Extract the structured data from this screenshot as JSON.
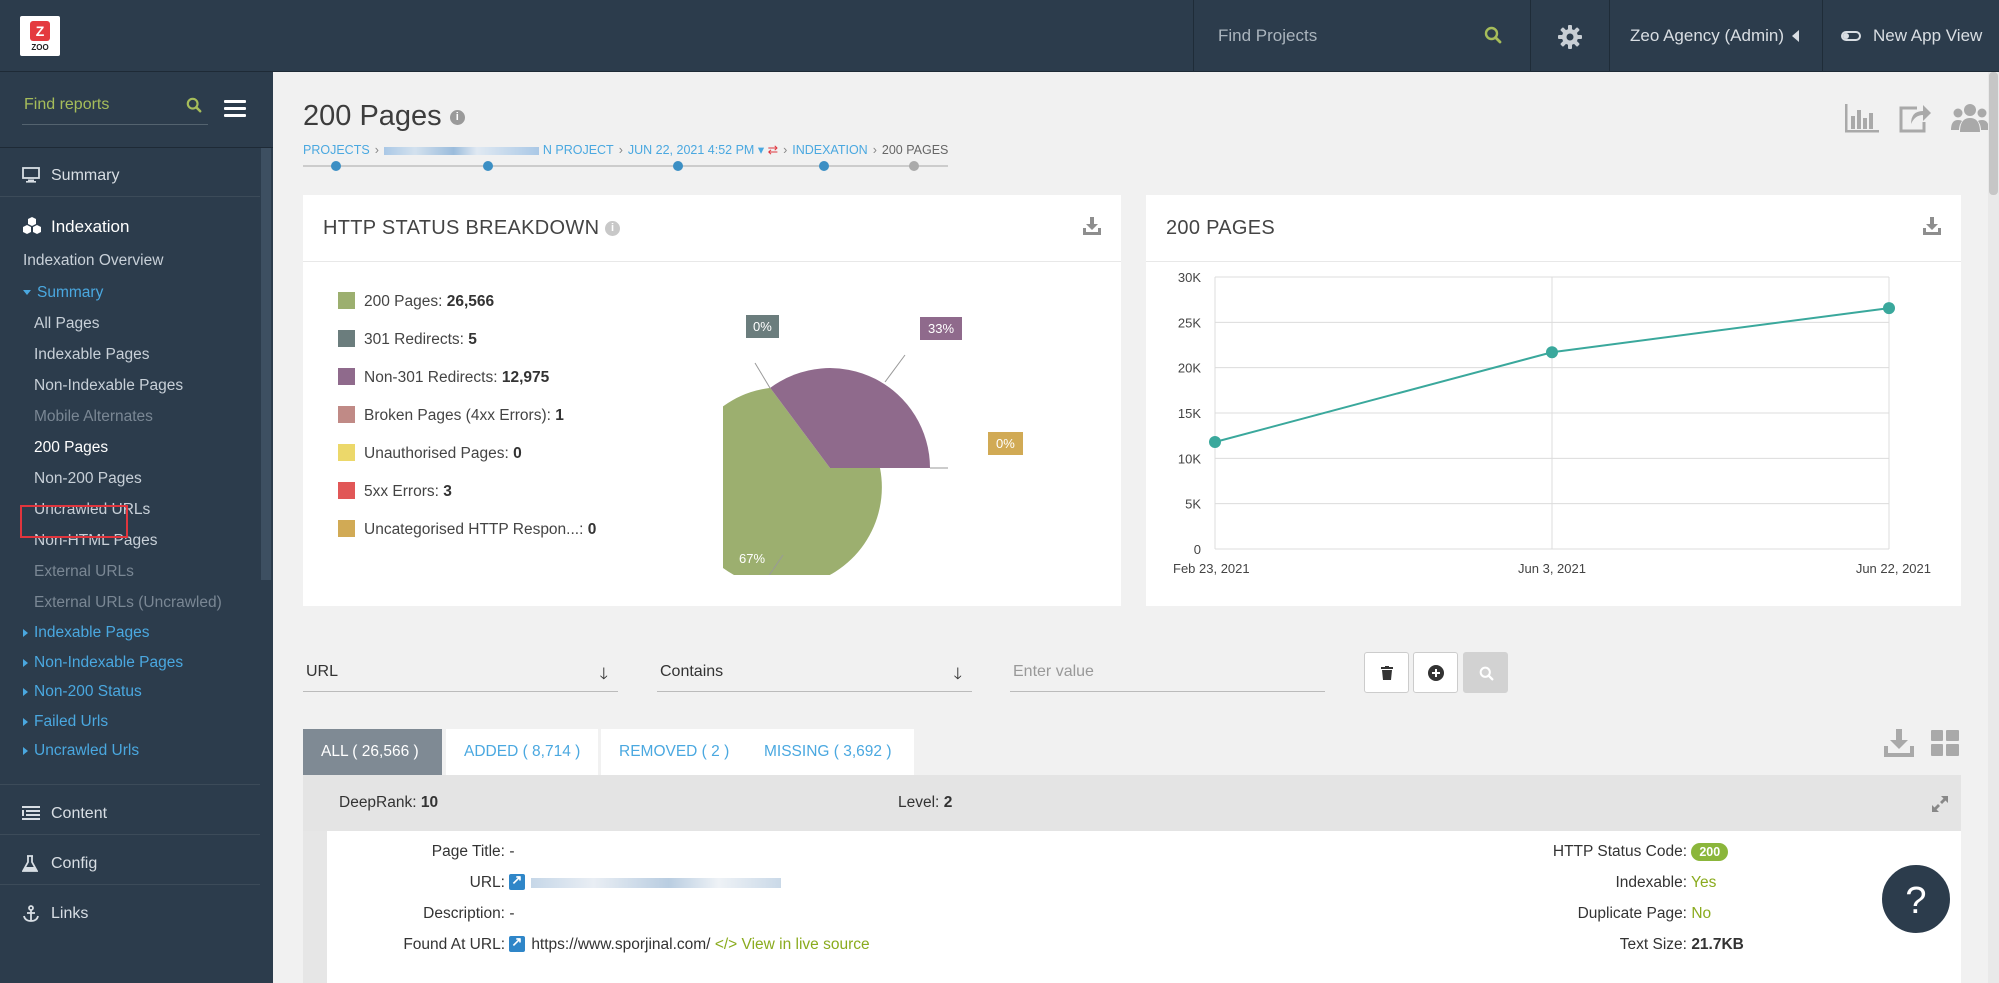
{
  "topbar": {
    "logo_text": "ZOO",
    "search_placeholder": "Find Projects",
    "user_menu": "Zeo Agency (Admin)",
    "new_app_view": "New App View"
  },
  "sidebar": {
    "search_placeholder": "Find reports",
    "summary": "Summary",
    "indexation": "Indexation",
    "sub": {
      "indexation_overview": "Indexation Overview",
      "summary": "Summary",
      "all_pages": "All Pages",
      "indexable_pages": "Indexable Pages",
      "non_indexable_pages": "Non-Indexable Pages",
      "mobile_alternates": "Mobile Alternates",
      "pages_200": "200 Pages",
      "non_200_pages": "Non-200 Pages",
      "uncrawled_urls": "Uncrawled URLs",
      "non_html_pages": "Non-HTML Pages",
      "external_urls": "External URLs",
      "external_urls_uncrawled": "External URLs (Uncrawled)",
      "g_indexable_pages": "Indexable Pages",
      "g_non_indexable_pages": "Non-Indexable Pages",
      "g_non_200_status": "Non-200 Status",
      "g_failed_urls": "Failed Urls",
      "g_uncrawled_urls": "Uncrawled Urls"
    },
    "content": "Content",
    "config": "Config",
    "links": "Links"
  },
  "page": {
    "title": "200 Pages",
    "crumbs": {
      "projects": "PROJECTS",
      "project": "N PROJECT",
      "date": "JUN 22, 2021 4:52 PM",
      "indexation": "INDEXATION",
      "current": "200 PAGES"
    }
  },
  "status_panel": {
    "title": "HTTP STATUS BREAKDOWN",
    "legend": [
      {
        "label": "200 Pages: ",
        "value": "26,566",
        "color": "#9caf6f"
      },
      {
        "label": "301 Redirects: ",
        "value": "5",
        "color": "#6b7d7d"
      },
      {
        "label": "Non-301 Redirects: ",
        "value": "12,975",
        "color": "#8f6a8c"
      },
      {
        "label": "Broken Pages (4xx Errors): ",
        "value": "1",
        "color": "#c08a86"
      },
      {
        "label": "Unauthorised Pages: ",
        "value": "0",
        "color": "#ecd86a"
      },
      {
        "label": "5xx Errors: ",
        "value": "3",
        "color": "#e15757"
      },
      {
        "label": "Uncategorised HTTP Respon...: ",
        "value": "0",
        "color": "#d1aa55"
      }
    ],
    "pie_labels": {
      "a": "0%",
      "b": "33%",
      "c": "0%",
      "d": "67%"
    }
  },
  "chart_panel": {
    "title": "200 PAGES"
  },
  "chart_data": {
    "type": "line",
    "title": "200 PAGES",
    "x": [
      "Feb 23, 2021",
      "Jun 3, 2021",
      "Jun 22, 2021"
    ],
    "values": [
      11800,
      21700,
      26566
    ],
    "ylim": [
      0,
      30000
    ],
    "yticks": [
      "0",
      "5K",
      "10K",
      "15K",
      "20K",
      "25K",
      "30K"
    ],
    "grid": true,
    "color": "#3aa89c"
  },
  "filters": {
    "field": "URL",
    "operator": "Contains",
    "value_placeholder": "Enter value"
  },
  "tabs": {
    "all": "ALL ( 26,566 )",
    "added": "ADDED ( 8,714 )",
    "removed": "REMOVED ( 2 )",
    "missing": "MISSING ( 3,692 )"
  },
  "record": {
    "deeprank_label": "DeepRank:",
    "deeprank_value": "10",
    "level_label": "Level:",
    "level_value": "2",
    "page_title_label": "Page Title:",
    "page_title_value": "-",
    "url_label": "URL:",
    "description_label": "Description:",
    "description_value": "-",
    "found_at_label": "Found At URL:",
    "found_at_value": "https://www.sporjinal.com/",
    "live_source": "View in live source",
    "http_status_label": "HTTP Status Code:",
    "http_status_value": "200",
    "indexable_label": "Indexable:",
    "indexable_value": "Yes",
    "duplicate_label": "Duplicate Page:",
    "duplicate_value": "No",
    "text_size_label": "Text Size:",
    "text_size_value": "21.7KB"
  },
  "help_button": "?"
}
